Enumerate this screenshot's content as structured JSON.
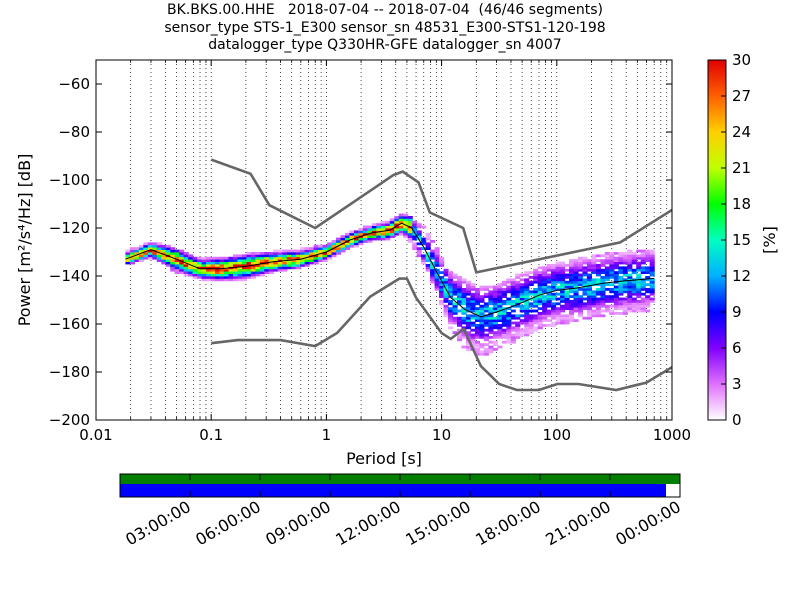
{
  "header": {
    "title_line1": "BK.BKS.00.HHE   2018-07-04 -- 2018-07-04  (46/46 segments)",
    "title_line2": "sensor_type STS-1_E300 sensor_sn 48531_E300-STS1-120-198",
    "title_line3": "datalogger_type Q330HR-GFE datalogger_sn 4007"
  },
  "chart_data": {
    "type": "heatmap",
    "title": "BK.BKS.00.HHE   2018-07-04 -- 2018-07-04  (46/46 segments)",
    "xlabel": "Period [s]",
    "ylabel": "Power [m²/s⁴/Hz] [dB]",
    "xscale": "log",
    "xlim": [
      0.01,
      1000
    ],
    "ylim": [
      -200,
      -50
    ],
    "x_ticks": [
      0.01,
      0.1,
      1,
      10,
      100,
      1000
    ],
    "x_tick_labels": [
      "0.01",
      "0.1",
      "1",
      "10",
      "100",
      "1000"
    ],
    "y_ticks": [
      -200,
      -180,
      -160,
      -140,
      -120,
      -100,
      -80,
      -60
    ],
    "y_tick_labels": [
      "−200",
      "−180",
      "−160",
      "−140",
      "−120",
      "−100",
      "−80",
      "−60"
    ],
    "grid": "dotted vertical at log subdivisions",
    "colorbar": {
      "label": "[%]",
      "range": [
        0,
        30
      ],
      "ticks": [
        0,
        3,
        6,
        9,
        12,
        15,
        18,
        21,
        24,
        27,
        30
      ],
      "tick_labels": [
        "0",
        "3",
        "6",
        "9",
        "12",
        "15",
        "18",
        "21",
        "24",
        "27",
        "30"
      ]
    },
    "mean_curve": {
      "x": [
        0.018,
        0.03,
        0.05,
        0.08,
        0.12,
        0.2,
        0.35,
        0.6,
        1.0,
        1.6,
        2.5,
        3.5,
        4.5,
        5.5,
        7,
        9,
        12,
        16,
        22,
        30,
        45,
        70,
        100,
        150,
        250,
        400,
        700
      ],
      "y": [
        -133,
        -129,
        -133,
        -137,
        -137,
        -136,
        -134,
        -133,
        -130,
        -125,
        -122,
        -121,
        -118,
        -120,
        -128,
        -138,
        -149,
        -154,
        -157,
        -155,
        -152,
        -148,
        -146,
        -145,
        -143,
        -142,
        -141
      ]
    },
    "spread": {
      "upper": [
        -130,
        -126,
        -129,
        -133,
        -133,
        -131,
        -130,
        -129,
        -127,
        -122,
        -119,
        -117,
        -114,
        -116,
        -120,
        -128,
        -138,
        -142,
        -145,
        -144,
        -140,
        -137,
        -135,
        -133,
        -131,
        -130,
        -130
      ],
      "lower": [
        -135,
        -132,
        -138,
        -141,
        -142,
        -141,
        -138,
        -136,
        -133,
        -128,
        -125,
        -124,
        -122,
        -126,
        -135,
        -146,
        -162,
        -170,
        -173,
        -170,
        -167,
        -162,
        -160,
        -158,
        -156,
        -155,
        -154
      ]
    },
    "nhnm": {
      "x": [
        0.1,
        0.22,
        0.32,
        0.8,
        3.8,
        4.6,
        6.3,
        7.9,
        15.4,
        20,
        354.8,
        1000
      ],
      "y": [
        -91.5,
        -97.4,
        -110.5,
        -120,
        -98,
        -96.5,
        -101,
        -113.5,
        -120,
        -138.5,
        -126,
        -112.5
      ]
    },
    "nlnm": {
      "x": [
        0.1,
        0.17,
        0.4,
        0.8,
        1.24,
        2.4,
        4.3,
        5,
        6,
        10,
        12,
        15.6,
        21.9,
        31.6,
        45,
        70,
        101,
        154,
        328,
        600,
        1000
      ],
      "y": [
        -168,
        -166.7,
        -166.7,
        -169.2,
        -163.7,
        -148.6,
        -141.1,
        -141.1,
        -149,
        -163.8,
        -166.2,
        -162.1,
        -177.5,
        -185,
        -187.5,
        -187.5,
        -185,
        -185,
        -187.5,
        -184.4,
        -178
      ]
    },
    "coverage_axis": {
      "tick_labels": [
        "03:00:00",
        "06:00:00",
        "09:00:00",
        "12:00:00",
        "15:00:00",
        "18:00:00",
        "21:00:00",
        "00:00:00"
      ],
      "data_coverage_fraction": 1.0,
      "psd_coverage_fraction": 0.975
    }
  },
  "colors": {
    "mean": "#000000",
    "model_curves": "#666666",
    "coverage_top": "#007f00",
    "coverage_bottom": "#0000ff"
  }
}
